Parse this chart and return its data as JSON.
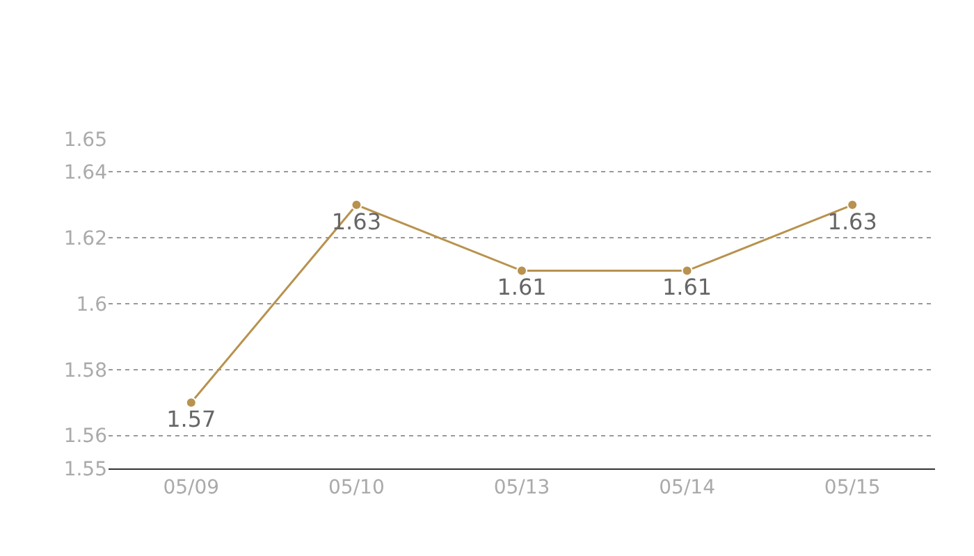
{
  "chart_data": {
    "type": "line",
    "categories": [
      "05/09",
      "05/10",
      "05/13",
      "05/14",
      "05/15"
    ],
    "series": [
      {
        "color": "#b8924e",
        "values": [
          1.57,
          1.63,
          1.61,
          1.61,
          1.63
        ]
      }
    ],
    "ylim": [
      1.55,
      1.65
    ],
    "yticks": [
      1.55,
      1.56,
      1.58,
      1.6,
      1.62,
      1.64,
      1.65
    ],
    "grid": "y",
    "marker": "circle",
    "line_style": "solid",
    "data_labels": true
  }
}
